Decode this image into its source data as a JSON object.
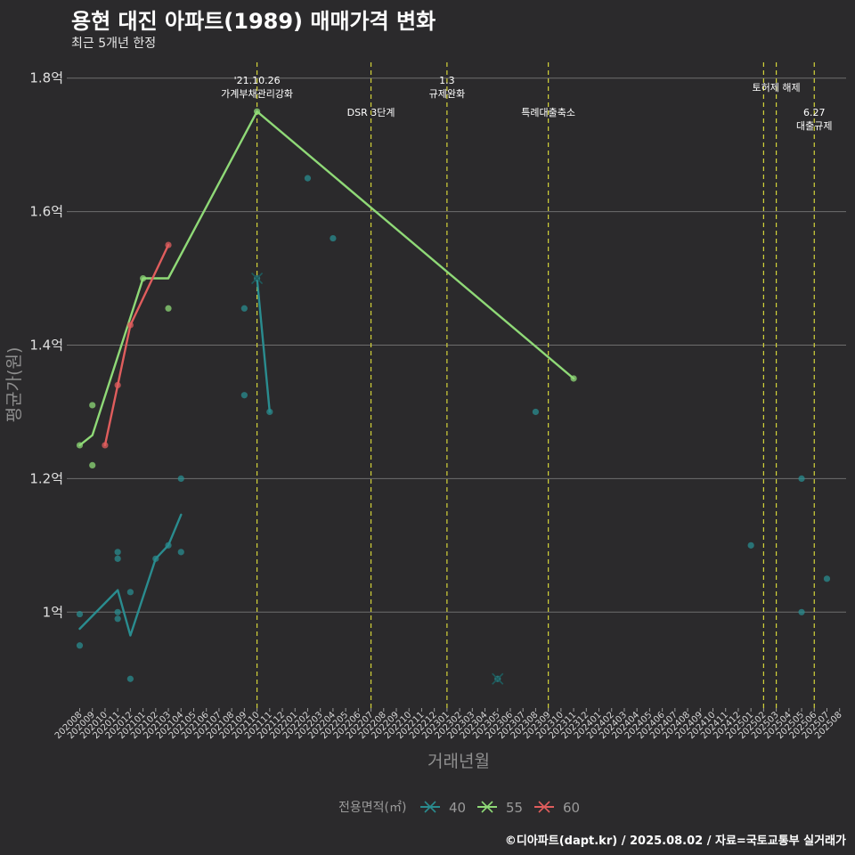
{
  "page": {
    "title": "용현 대진 아파트(1989) 매매가격 변화",
    "subtitle": "최근 5개년 한정",
    "credit": "©디아파트(dapt.kr) / 2025.08.02 / 자료=국토교통부 실거래가"
  },
  "chart_data": {
    "type": "line",
    "xlabel": "거래년월",
    "ylabel": "평균가(원)",
    "x_categories": [
      "202008",
      "202009",
      "202010",
      "202011",
      "202012",
      "202101",
      "202102",
      "202103",
      "202104",
      "202105",
      "202106",
      "202107",
      "202108",
      "202109",
      "202110",
      "202111",
      "202112",
      "202201",
      "202202",
      "202203",
      "202204",
      "202205",
      "202206",
      "202207",
      "202208",
      "202209",
      "202210",
      "202211",
      "202212",
      "202301",
      "202302",
      "202303",
      "202304",
      "202305",
      "202306",
      "202307",
      "202308",
      "202309",
      "202310",
      "202311",
      "202312",
      "202401",
      "202402",
      "202403",
      "202404",
      "202405",
      "202406",
      "202407",
      "202408",
      "202409",
      "202410",
      "202411",
      "202412",
      "202501",
      "202502",
      "202503",
      "202504",
      "202505",
      "202506",
      "202507",
      "202508"
    ],
    "ylim": [
      0.885,
      1.82
    ],
    "y_ticks": [
      {
        "value": 1.0,
        "label": "1억"
      },
      {
        "value": 1.2,
        "label": "1.2억"
      },
      {
        "value": 1.4,
        "label": "1.4억"
      },
      {
        "value": 1.6,
        "label": "1.6억"
      },
      {
        "value": 1.8,
        "label": "1.8억"
      }
    ],
    "grid": true,
    "legend": {
      "title": "전용면적(㎡)",
      "placement": "bottom"
    },
    "series": [
      {
        "name": "40",
        "color": "#2a8c8f",
        "line": [
          [
            "202008",
            0.975
          ],
          [
            "202011",
            1.033
          ],
          [
            "202012",
            0.965
          ],
          [
            "202102",
            1.08
          ],
          [
            "202103",
            1.1
          ],
          [
            "202104",
            1.146
          ]
        ],
        "points": [
          [
            "202008",
            0.997
          ],
          [
            "202008",
            0.95
          ],
          [
            "202011",
            1.09
          ],
          [
            "202011",
            1.08
          ],
          [
            "202011",
            1.0
          ],
          [
            "202011",
            0.99
          ],
          [
            "202012",
            1.03
          ],
          [
            "202012",
            0.9
          ],
          [
            "202102",
            1.08
          ],
          [
            "202103",
            1.1
          ],
          [
            "202104",
            1.2
          ],
          [
            "202104",
            1.09
          ],
          [
            "202109",
            1.455
          ],
          [
            "202109",
            1.325
          ],
          [
            "202110",
            1.5
          ],
          [
            "202111",
            1.3
          ],
          [
            "202202",
            1.65
          ],
          [
            "202204",
            1.56
          ],
          [
            "202305",
            0.9
          ],
          [
            "202308",
            1.3
          ],
          [
            "202501",
            1.1
          ],
          [
            "202505",
            1.2
          ],
          [
            "202505",
            1.0
          ],
          [
            "202507",
            1.05
          ]
        ],
        "crosses": [
          [
            "202110",
            1.5
          ],
          [
            "202305",
            0.9
          ]
        ],
        "trend": [
          [
            "202110",
            1.5
          ],
          [
            "202111",
            1.3
          ]
        ]
      },
      {
        "name": "55",
        "color": "#8fd977",
        "line": [
          [
            "202008",
            1.25
          ],
          [
            "202009",
            1.265
          ],
          [
            "202101",
            1.5
          ],
          [
            "202103",
            1.5
          ],
          [
            "202110",
            1.75
          ],
          [
            "202311",
            1.35
          ]
        ],
        "points": [
          [
            "202008",
            1.25
          ],
          [
            "202009",
            1.31
          ],
          [
            "202009",
            1.22
          ],
          [
            "202101",
            1.5
          ],
          [
            "202103",
            1.455
          ],
          [
            "202110",
            1.75
          ],
          [
            "202311",
            1.35
          ]
        ],
        "crosses": []
      },
      {
        "name": "60",
        "color": "#e05d5d",
        "line": [
          [
            "202010",
            1.25
          ],
          [
            "202011",
            1.34
          ],
          [
            "202012",
            1.43
          ],
          [
            "202103",
            1.55
          ]
        ],
        "points": [
          [
            "202010",
            1.25
          ],
          [
            "202011",
            1.34
          ],
          [
            "202012",
            1.43
          ],
          [
            "202103",
            1.55
          ]
        ],
        "crosses": []
      }
    ],
    "events": [
      {
        "x": "202110",
        "lines": [
          "'21.10.26",
          "가계부채관리강화"
        ],
        "anchor": "high"
      },
      {
        "x": "202207",
        "lines": [
          "DSR 3단계"
        ],
        "anchor": "low"
      },
      {
        "x": "202301",
        "lines": [
          "1.3",
          "규제완화"
        ],
        "anchor": "high"
      },
      {
        "x": "202309",
        "lines": [
          "특례대출축소"
        ],
        "anchor": "low"
      },
      {
        "x": "202502",
        "lines": [],
        "anchor": "high"
      },
      {
        "x": "202503",
        "lines": [
          "토허제 해제"
        ],
        "anchor": "mid"
      },
      {
        "x": "202506",
        "lines": [
          "6.27",
          "대출규제"
        ],
        "anchor": "low"
      }
    ]
  }
}
